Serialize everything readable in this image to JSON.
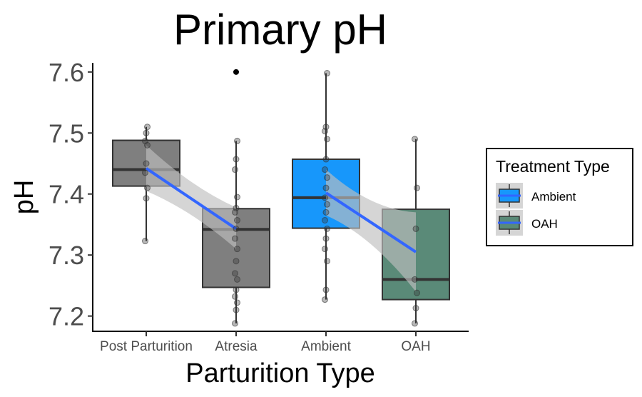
{
  "chart_data": {
    "type": "box",
    "title": "Primary pH",
    "xlabel": "Parturition Type",
    "ylabel": "pH",
    "categories": [
      "Post Parturition",
      "Atresia",
      "Ambient",
      "OAH"
    ],
    "ylim": [
      7.175,
      7.615
    ],
    "yticks": [
      "7.2",
      "7.3",
      "7.4",
      "7.5",
      "7.6"
    ],
    "grid": false,
    "legend": {
      "title": "Treatment Type",
      "position": "right",
      "entries": [
        {
          "label": "Ambient",
          "color": "#1797FB"
        },
        {
          "label": "OAH",
          "color": "#5A8A78"
        }
      ]
    },
    "boxes": [
      {
        "category": "Post Parturition",
        "q1": 7.413,
        "median": 7.44,
        "q3": 7.488,
        "whisker_low": 7.323,
        "whisker_high": 7.51,
        "fill": "#7F7F7F",
        "points": [
          7.323,
          7.393,
          7.41,
          7.435,
          7.45,
          7.48,
          7.487,
          7.5,
          7.51
        ]
      },
      {
        "category": "Atresia",
        "q1": 7.247,
        "median": 7.342,
        "q3": 7.376,
        "whisker_low": 7.188,
        "whisker_high": 7.487,
        "fill": "#7F7F7F",
        "points": [
          7.188,
          7.21,
          7.222,
          7.232,
          7.243,
          7.26,
          7.27,
          7.29,
          7.31,
          7.327,
          7.343,
          7.357,
          7.37,
          7.377,
          7.395,
          7.44,
          7.457,
          7.487
        ],
        "outliers": [
          7.6
        ]
      },
      {
        "category": "Ambient",
        "q1": 7.344,
        "median": 7.394,
        "q3": 7.457,
        "whisker_low": 7.227,
        "whisker_high": 7.598,
        "fill": "#1797FB",
        "points": [
          7.227,
          7.243,
          7.29,
          7.31,
          7.327,
          7.343,
          7.357,
          7.37,
          7.383,
          7.394,
          7.41,
          7.427,
          7.44,
          7.457,
          7.49,
          7.503,
          7.51,
          7.598
        ]
      },
      {
        "category": "OAH",
        "q1": 7.227,
        "median": 7.26,
        "q3": 7.375,
        "whisker_low": 7.188,
        "whisker_high": 7.49,
        "fill": "#5A8A78",
        "points": [
          7.188,
          7.213,
          7.238,
          7.26,
          7.343,
          7.41,
          7.49
        ]
      }
    ],
    "trend_lines": [
      {
        "from": "Post Parturition",
        "to": "Atresia",
        "y_start": 7.442,
        "y_end": 7.343,
        "band_start": [
          7.405,
          7.48
        ],
        "band_end": [
          7.31,
          7.378
        ]
      },
      {
        "from": "Ambient",
        "to": "OAH",
        "y_start": 7.402,
        "y_end": 7.305,
        "band_start": [
          7.365,
          7.44
        ],
        "band_end": [
          7.24,
          7.37
        ]
      }
    ],
    "colors": {
      "trend": "#3366FF",
      "band": "#BFBFBF",
      "point": "#333333"
    }
  }
}
